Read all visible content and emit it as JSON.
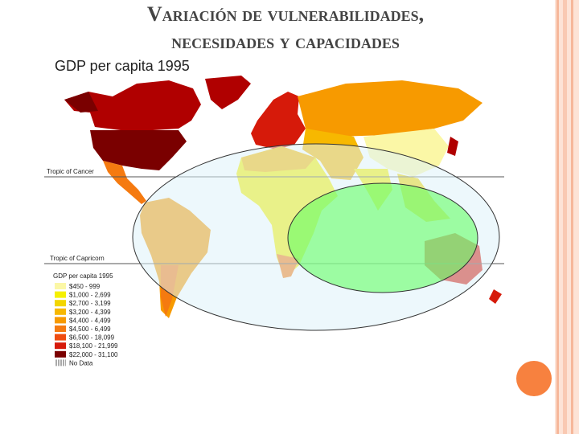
{
  "slide": {
    "title_line1": "Variación de vulnerabilidades,",
    "title_line2": "necesidades y capacidades"
  },
  "map": {
    "title": "GDP per capita 1995",
    "lines": [
      "Tropic of Cancer",
      "Tropic of Capricorn"
    ],
    "legend": {
      "title": "GDP per capita 1995",
      "items": [
        {
          "label": "$450 - 999",
          "color": "#fbf7a6"
        },
        {
          "label": "$1,000 - 2,699",
          "color": "#f5f000"
        },
        {
          "label": "$2,700 - 3,199",
          "color": "#f3d600"
        },
        {
          "label": "$3,200 - 4,399",
          "color": "#f7b800"
        },
        {
          "label": "$4,400 - 4,499",
          "color": "#f79a00"
        },
        {
          "label": "$4,500 - 6,499",
          "color": "#f57a10"
        },
        {
          "label": "$6,500 - 18,099",
          "color": "#ef4c10"
        },
        {
          "label": "$18,100 - 21,999",
          "color": "#d61a0a"
        },
        {
          "label": "$22,000 - 31,100",
          "color": "#7a0000"
        },
        {
          "label": "No Data"
        }
      ]
    }
  }
}
